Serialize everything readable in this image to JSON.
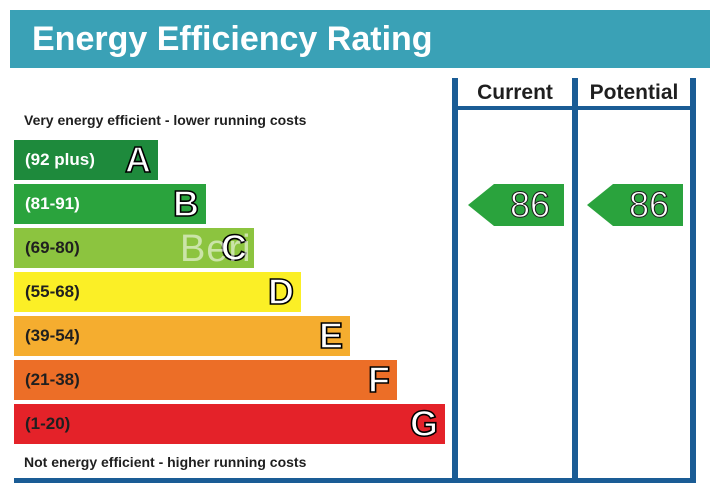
{
  "title": "Energy Efficiency Rating",
  "columns": {
    "current": "Current",
    "potential": "Potential"
  },
  "notes": {
    "top": "Very energy efficient - lower running costs",
    "bottom": "Not energy efficient - higher running costs"
  },
  "bands": [
    {
      "range": "(92 plus)",
      "letter": "A",
      "color": "#1e8a3c",
      "text_color": "#ffffff"
    },
    {
      "range": "(81-91)",
      "letter": "B",
      "color": "#2aa33d",
      "text_color": "#ffffff"
    },
    {
      "range": "(69-80)",
      "letter": "C",
      "color": "#8cc43f",
      "text_color": "#1f1f1f"
    },
    {
      "range": "(55-68)",
      "letter": "D",
      "color": "#fbef26",
      "text_color": "#1f1f1f"
    },
    {
      "range": "(39-54)",
      "letter": "E",
      "color": "#f5ad2f",
      "text_color": "#1f1f1f"
    },
    {
      "range": "(21-38)",
      "letter": "F",
      "color": "#ec6e27",
      "text_color": "#1f1f1f"
    },
    {
      "range": "(1-20)",
      "letter": "G",
      "color": "#e42229",
      "text_color": "#1f1f1f"
    }
  ],
  "ratings": {
    "current": "86",
    "potential": "86",
    "color": "#2aa33d"
  },
  "watermark": "Beringsea"
}
